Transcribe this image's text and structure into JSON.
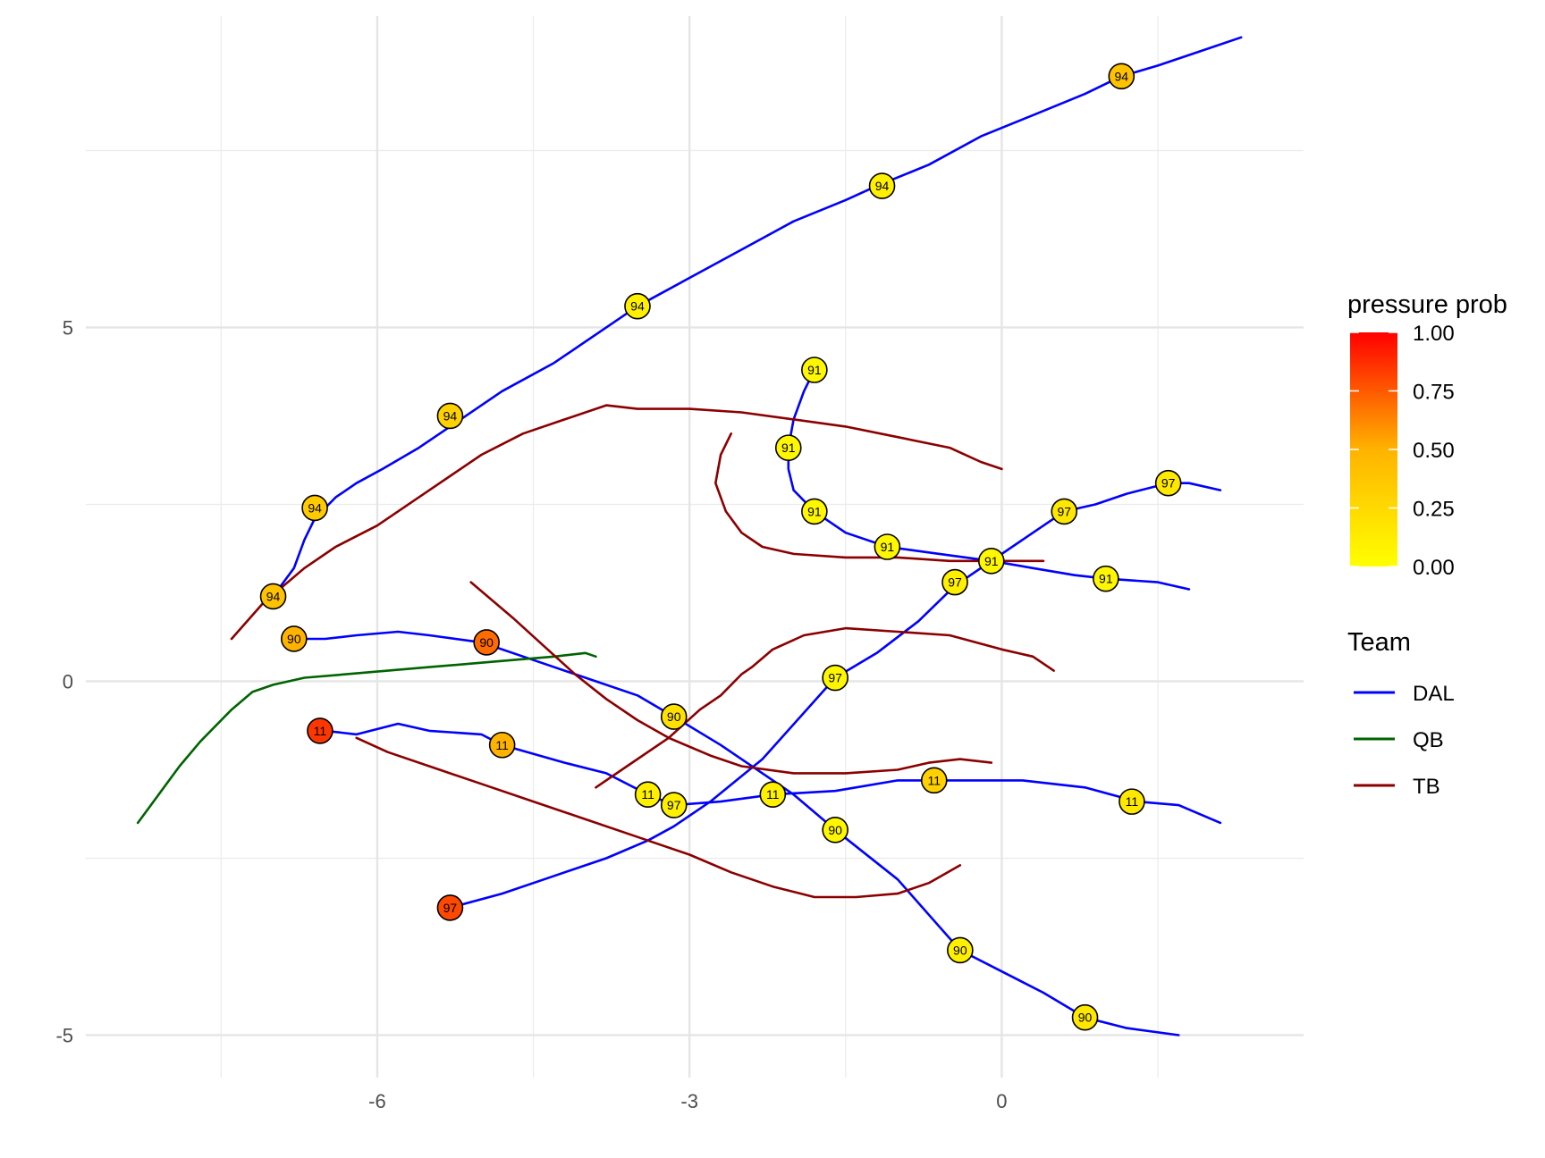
{
  "chart_data": {
    "type": "line",
    "title": "",
    "xlabel": "",
    "ylabel": "",
    "xlim": [
      -8.8,
      2.9
    ],
    "ylim": [
      -5.6,
      9.4
    ],
    "x_ticks": [
      -6,
      -3,
      0
    ],
    "x_tick_labels": [
      "-6",
      "-3",
      "0"
    ],
    "x_minor_gridlines": [
      -7.5,
      -4.5,
      -1.5,
      1.5
    ],
    "y_ticks": [
      -5,
      0,
      5
    ],
    "y_tick_labels": [
      "-5",
      "0",
      "5"
    ],
    "y_minor_gridlines": [
      -2.5,
      2.5,
      7.5
    ],
    "grid": true,
    "legend_position": "right",
    "color_legend": {
      "title": "pressure prob",
      "range": [
        0,
        1
      ],
      "gradient": [
        "#FFFF00",
        "#FF0000"
      ],
      "ticks": [
        1.0,
        0.75,
        0.5,
        0.25,
        0.0
      ],
      "tick_labels": [
        "1.00",
        "0.75",
        "0.50",
        "0.25",
        "0.00"
      ]
    },
    "team_legend": {
      "title": "Team",
      "entries": [
        {
          "name": "DAL",
          "color": "#0000FF"
        },
        {
          "name": "QB",
          "color": "#006400"
        },
        {
          "name": "TB",
          "color": "#8B0000"
        }
      ]
    },
    "series": [
      {
        "team": "DAL",
        "player": "94",
        "color": "#0000FF",
        "points": [
          [
            -7.0,
            1.2
          ],
          [
            -6.8,
            1.6
          ],
          [
            -6.7,
            2.0
          ],
          [
            -6.6,
            2.3
          ],
          [
            -6.4,
            2.6
          ],
          [
            -6.2,
            2.8
          ],
          [
            -5.95,
            3.0
          ],
          [
            -5.6,
            3.3
          ],
          [
            -5.3,
            3.6
          ],
          [
            -4.8,
            4.1
          ],
          [
            -4.3,
            4.5
          ],
          [
            -3.9,
            4.9
          ],
          [
            -3.5,
            5.3
          ],
          [
            -3.0,
            5.7
          ],
          [
            -2.5,
            6.1
          ],
          [
            -2.0,
            6.5
          ],
          [
            -1.5,
            6.8
          ],
          [
            -1.2,
            7.0
          ],
          [
            -0.7,
            7.3
          ],
          [
            -0.2,
            7.7
          ],
          [
            0.3,
            8.0
          ],
          [
            0.8,
            8.3
          ],
          [
            1.15,
            8.55
          ],
          [
            1.5,
            8.7
          ],
          [
            1.9,
            8.9
          ],
          [
            2.3,
            9.1
          ]
        ]
      },
      {
        "team": "DAL",
        "player": "91",
        "color": "#0000FF",
        "points": [
          [
            -1.8,
            4.4
          ],
          [
            -1.9,
            4.1
          ],
          [
            -2.0,
            3.7
          ],
          [
            -2.05,
            3.3
          ],
          [
            -2.05,
            3.0
          ],
          [
            -2.0,
            2.7
          ],
          [
            -1.8,
            2.4
          ],
          [
            -1.5,
            2.1
          ],
          [
            -1.1,
            1.9
          ],
          [
            -0.6,
            1.8
          ],
          [
            -0.1,
            1.7
          ],
          [
            0.3,
            1.6
          ],
          [
            0.7,
            1.5
          ],
          [
            1.0,
            1.45
          ],
          [
            1.5,
            1.4
          ],
          [
            1.8,
            1.3
          ]
        ]
      },
      {
        "team": "DAL",
        "player": "97",
        "color": "#0000FF",
        "points": [
          [
            -5.3,
            -3.2
          ],
          [
            -4.8,
            -3.0
          ],
          [
            -4.3,
            -2.75
          ],
          [
            -3.8,
            -2.5
          ],
          [
            -3.4,
            -2.25
          ],
          [
            -3.15,
            -2.05
          ],
          [
            -2.8,
            -1.7
          ],
          [
            -2.3,
            -1.1
          ],
          [
            -1.6,
            0.05
          ],
          [
            -1.2,
            0.4
          ],
          [
            -0.8,
            0.85
          ],
          [
            -0.45,
            1.35
          ],
          [
            -0.15,
            1.65
          ],
          [
            0.2,
            2.0
          ],
          [
            0.6,
            2.4
          ],
          [
            0.9,
            2.5
          ],
          [
            1.2,
            2.65
          ],
          [
            1.6,
            2.8
          ],
          [
            1.8,
            2.8
          ],
          [
            2.1,
            2.7
          ]
        ]
      },
      {
        "team": "DAL",
        "player": "90",
        "color": "#0000FF",
        "points": [
          [
            -6.8,
            0.6
          ],
          [
            -6.5,
            0.6
          ],
          [
            -6.2,
            0.65
          ],
          [
            -5.8,
            0.7
          ],
          [
            -5.5,
            0.65
          ],
          [
            -5.0,
            0.55
          ],
          [
            -4.5,
            0.3
          ],
          [
            -3.5,
            -0.2
          ],
          [
            -3.15,
            -0.5
          ],
          [
            -2.7,
            -0.9
          ],
          [
            -2.3,
            -1.3
          ],
          [
            -2.0,
            -1.6
          ],
          [
            -1.6,
            -2.1
          ],
          [
            -1.0,
            -2.8
          ],
          [
            -0.7,
            -3.3
          ],
          [
            -0.4,
            -3.8
          ],
          [
            0.0,
            -4.1
          ],
          [
            0.4,
            -4.4
          ],
          [
            0.8,
            -4.75
          ],
          [
            1.2,
            -4.9
          ],
          [
            1.7,
            -5.0
          ]
        ]
      },
      {
        "team": "DAL",
        "player": "11",
        "color": "#0000FF",
        "points": [
          [
            -6.5,
            -0.7
          ],
          [
            -6.2,
            -0.75
          ],
          [
            -5.8,
            -0.6
          ],
          [
            -5.5,
            -0.7
          ],
          [
            -5.0,
            -0.75
          ],
          [
            -4.8,
            -0.9
          ],
          [
            -4.2,
            -1.15
          ],
          [
            -3.8,
            -1.3
          ],
          [
            -3.4,
            -1.6
          ],
          [
            -3.15,
            -1.75
          ],
          [
            -2.7,
            -1.7
          ],
          [
            -2.2,
            -1.6
          ],
          [
            -1.6,
            -1.55
          ],
          [
            -1.0,
            -1.4
          ],
          [
            -0.7,
            -1.4
          ],
          [
            0.2,
            -1.4
          ],
          [
            0.8,
            -1.5
          ],
          [
            1.3,
            -1.7
          ],
          [
            1.7,
            -1.75
          ],
          [
            2.1,
            -2.0
          ]
        ]
      },
      {
        "team": "QB",
        "player": "",
        "color": "#006400",
        "points": [
          [
            -8.3,
            -2.0
          ],
          [
            -8.1,
            -1.6
          ],
          [
            -7.9,
            -1.2
          ],
          [
            -7.7,
            -0.85
          ],
          [
            -7.4,
            -0.4
          ],
          [
            -7.2,
            -0.15
          ],
          [
            -7.0,
            -0.05
          ],
          [
            -6.7,
            0.05
          ],
          [
            -6.3,
            0.1
          ],
          [
            -5.9,
            0.15
          ],
          [
            -5.5,
            0.2
          ],
          [
            -5.1,
            0.25
          ],
          [
            -4.7,
            0.3
          ],
          [
            -4.3,
            0.35
          ],
          [
            -4.0,
            0.4
          ],
          [
            -3.9,
            0.35
          ]
        ]
      },
      {
        "team": "TB",
        "player": "",
        "color": "#8B0000",
        "points": [
          [
            -7.4,
            0.6
          ],
          [
            -7.1,
            1.1
          ],
          [
            -6.7,
            1.6
          ],
          [
            -6.4,
            1.9
          ],
          [
            -6.0,
            2.2
          ],
          [
            -5.5,
            2.7
          ],
          [
            -5.0,
            3.2
          ],
          [
            -4.6,
            3.5
          ],
          [
            -4.2,
            3.7
          ],
          [
            -3.8,
            3.9
          ],
          [
            -3.5,
            3.85
          ],
          [
            -3.0,
            3.85
          ],
          [
            -2.5,
            3.8
          ],
          [
            -2.0,
            3.7
          ],
          [
            -1.5,
            3.6
          ],
          [
            -1.0,
            3.45
          ],
          [
            -0.5,
            3.3
          ],
          [
            -0.2,
            3.1
          ],
          [
            0.0,
            3.0
          ]
        ]
      },
      {
        "team": "TB",
        "player": "",
        "color": "#8B0000",
        "points": [
          [
            -2.6,
            3.5
          ],
          [
            -2.7,
            3.2
          ],
          [
            -2.75,
            2.8
          ],
          [
            -2.65,
            2.4
          ],
          [
            -2.5,
            2.1
          ],
          [
            -2.3,
            1.9
          ],
          [
            -2.0,
            1.8
          ],
          [
            -1.5,
            1.75
          ],
          [
            -1.0,
            1.75
          ],
          [
            -0.5,
            1.7
          ],
          [
            0.0,
            1.7
          ],
          [
            0.4,
            1.7
          ]
        ]
      },
      {
        "team": "TB",
        "player": "",
        "color": "#8B0000",
        "points": [
          [
            -5.1,
            1.4
          ],
          [
            -4.7,
            0.9
          ],
          [
            -4.4,
            0.5
          ],
          [
            -4.1,
            0.1
          ],
          [
            -3.8,
            -0.25
          ],
          [
            -3.5,
            -0.55
          ],
          [
            -3.2,
            -0.8
          ],
          [
            -2.8,
            -1.05
          ],
          [
            -2.5,
            -1.2
          ],
          [
            -2.0,
            -1.3
          ],
          [
            -1.5,
            -1.3
          ],
          [
            -1.0,
            -1.25
          ],
          [
            -0.7,
            -1.15
          ],
          [
            -0.4,
            -1.1
          ],
          [
            -0.1,
            -1.15
          ]
        ]
      },
      {
        "team": "TB",
        "player": "",
        "color": "#8B0000",
        "points": [
          [
            -3.9,
            -1.5
          ],
          [
            -3.6,
            -1.2
          ],
          [
            -3.2,
            -0.8
          ],
          [
            -2.9,
            -0.4
          ],
          [
            -2.7,
            -0.2
          ],
          [
            -2.5,
            0.1
          ],
          [
            -2.4,
            0.2
          ],
          [
            -2.2,
            0.45
          ],
          [
            -1.9,
            0.65
          ],
          [
            -1.5,
            0.75
          ],
          [
            -1.0,
            0.7
          ],
          [
            -0.5,
            0.65
          ],
          [
            0.0,
            0.45
          ],
          [
            0.3,
            0.35
          ],
          [
            0.5,
            0.15
          ]
        ]
      },
      {
        "team": "TB",
        "player": "",
        "color": "#8B0000",
        "points": [
          [
            -6.2,
            -0.8
          ],
          [
            -5.9,
            -1.0
          ],
          [
            -5.4,
            -1.25
          ],
          [
            -5.0,
            -1.45
          ],
          [
            -4.5,
            -1.7
          ],
          [
            -4.0,
            -1.95
          ],
          [
            -3.5,
            -2.2
          ],
          [
            -3.0,
            -2.45
          ],
          [
            -2.6,
            -2.7
          ],
          [
            -2.2,
            -2.9
          ],
          [
            -1.8,
            -3.05
          ],
          [
            -1.4,
            -3.05
          ],
          [
            -1.0,
            -3.0
          ],
          [
            -0.7,
            -2.85
          ],
          [
            -0.4,
            -2.6
          ]
        ]
      }
    ],
    "markers": [
      {
        "label": "94",
        "x": -7.0,
        "y": 1.2,
        "pressure": 0.4
      },
      {
        "label": "94",
        "x": -6.6,
        "y": 2.45,
        "pressure": 0.35
      },
      {
        "label": "94",
        "x": -5.3,
        "y": 3.75,
        "pressure": 0.3
      },
      {
        "label": "94",
        "x": -3.5,
        "y": 5.3,
        "pressure": 0.1
      },
      {
        "label": "94",
        "x": -1.15,
        "y": 7.0,
        "pressure": 0.1
      },
      {
        "label": "94",
        "x": 1.15,
        "y": 8.55,
        "pressure": 0.4
      },
      {
        "label": "91",
        "x": -1.8,
        "y": 4.4,
        "pressure": 0.05
      },
      {
        "label": "91",
        "x": -2.05,
        "y": 3.3,
        "pressure": 0.05
      },
      {
        "label": "91",
        "x": -1.8,
        "y": 2.4,
        "pressure": 0.05
      },
      {
        "label": "91",
        "x": -1.1,
        "y": 1.9,
        "pressure": 0.05
      },
      {
        "label": "91",
        "x": -0.1,
        "y": 1.7,
        "pressure": 0.05
      },
      {
        "label": "91",
        "x": 1.0,
        "y": 1.45,
        "pressure": 0.05
      },
      {
        "label": "97",
        "x": 1.6,
        "y": 2.8,
        "pressure": 0.15
      },
      {
        "label": "97",
        "x": 0.6,
        "y": 2.4,
        "pressure": 0.15
      },
      {
        "label": "97",
        "x": -0.45,
        "y": 1.4,
        "pressure": 0.1
      },
      {
        "label": "97",
        "x": -1.6,
        "y": 0.05,
        "pressure": 0.05
      },
      {
        "label": "97",
        "x": -3.15,
        "y": -1.75,
        "pressure": 0.1
      },
      {
        "label": "97",
        "x": -5.3,
        "y": -3.2,
        "pressure": 0.8
      },
      {
        "label": "90",
        "x": -6.8,
        "y": 0.6,
        "pressure": 0.5
      },
      {
        "label": "90",
        "x": -4.95,
        "y": 0.55,
        "pressure": 0.7
      },
      {
        "label": "90",
        "x": -3.15,
        "y": -0.5,
        "pressure": 0.2
      },
      {
        "label": "90",
        "x": -1.6,
        "y": -2.1,
        "pressure": 0.05
      },
      {
        "label": "90",
        "x": -0.4,
        "y": -3.8,
        "pressure": 0.1
      },
      {
        "label": "90",
        "x": 0.8,
        "y": -4.75,
        "pressure": 0.15
      },
      {
        "label": "11",
        "x": -6.55,
        "y": -0.7,
        "pressure": 0.85
      },
      {
        "label": "11",
        "x": -4.8,
        "y": -0.9,
        "pressure": 0.5
      },
      {
        "label": "11",
        "x": -3.4,
        "y": -1.6,
        "pressure": 0.1
      },
      {
        "label": "11",
        "x": -2.2,
        "y": -1.6,
        "pressure": 0.1
      },
      {
        "label": "11",
        "x": -0.65,
        "y": -1.4,
        "pressure": 0.3
      },
      {
        "label": "11",
        "x": 1.25,
        "y": -1.7,
        "pressure": 0.15
      }
    ]
  }
}
